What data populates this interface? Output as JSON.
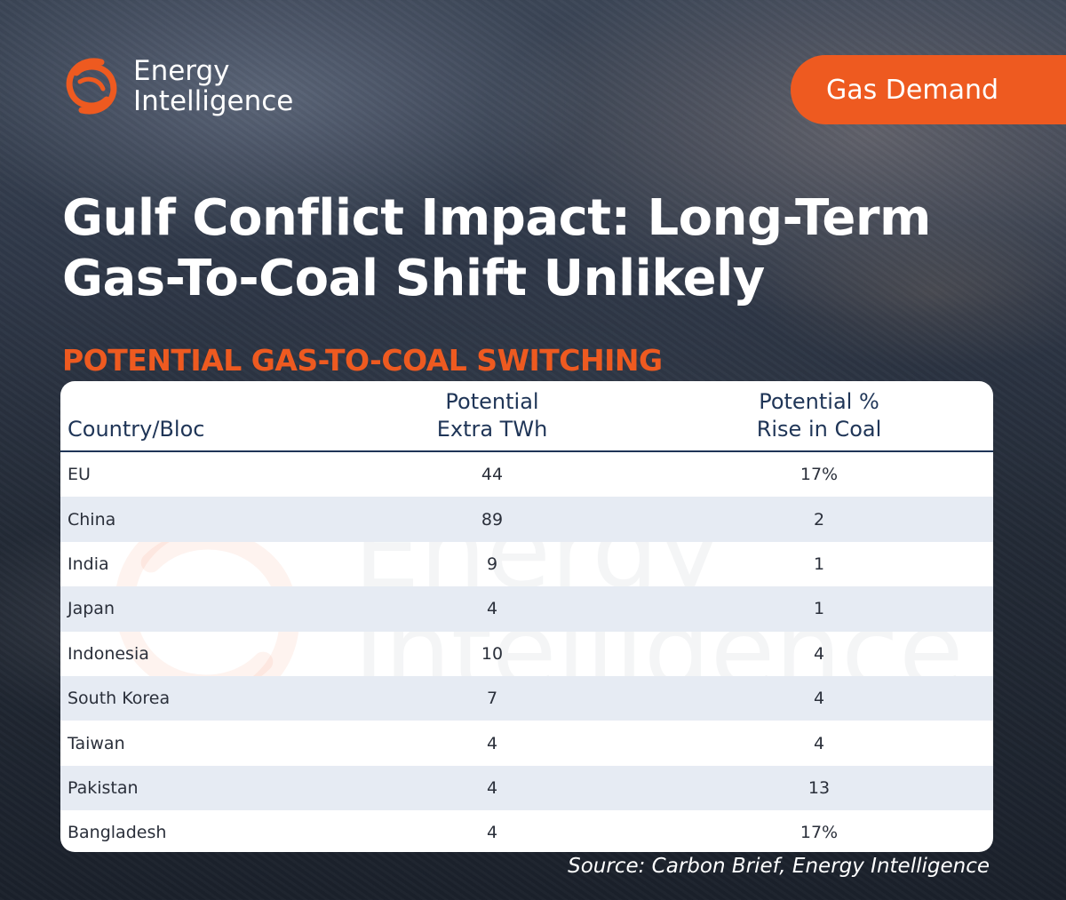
{
  "brand": {
    "logo_line1": "Energy",
    "logo_line2": "Intelligence",
    "accent_color": "#ee5a20",
    "navy_color": "#1f3557"
  },
  "tag": "Gas Demand",
  "title_line1": "Gulf Conflict Impact: Long-Term",
  "title_line2": "Gas-To-Coal Shift Unlikely",
  "chart_data": {
    "type": "table",
    "title": "POTENTIAL GAS-TO-COAL SWITCHING",
    "columns": [
      {
        "line1": "",
        "line2": "Country/Bloc"
      },
      {
        "line1": "Potential",
        "line2": "Extra TWh"
      },
      {
        "line1": "Potential %",
        "line2": "Rise in Coal"
      }
    ],
    "rows": [
      {
        "country": "EU",
        "twh": "44",
        "coal": "17%"
      },
      {
        "country": "China",
        "twh": "89",
        "coal": "2"
      },
      {
        "country": "India",
        "twh": "9",
        "coal": "1"
      },
      {
        "country": "Japan",
        "twh": "4",
        "coal": "1"
      },
      {
        "country": "Indonesia",
        "twh": "10",
        "coal": "4"
      },
      {
        "country": "South Korea",
        "twh": "7",
        "coal": "4"
      },
      {
        "country": "Taiwan",
        "twh": "4",
        "coal": "4"
      },
      {
        "country": "Pakistan",
        "twh": "4",
        "coal": "13"
      },
      {
        "country": "Bangladesh",
        "twh": "4",
        "coal": "17%"
      }
    ]
  },
  "source": "Source: Carbon Brief, Energy Intelligence"
}
